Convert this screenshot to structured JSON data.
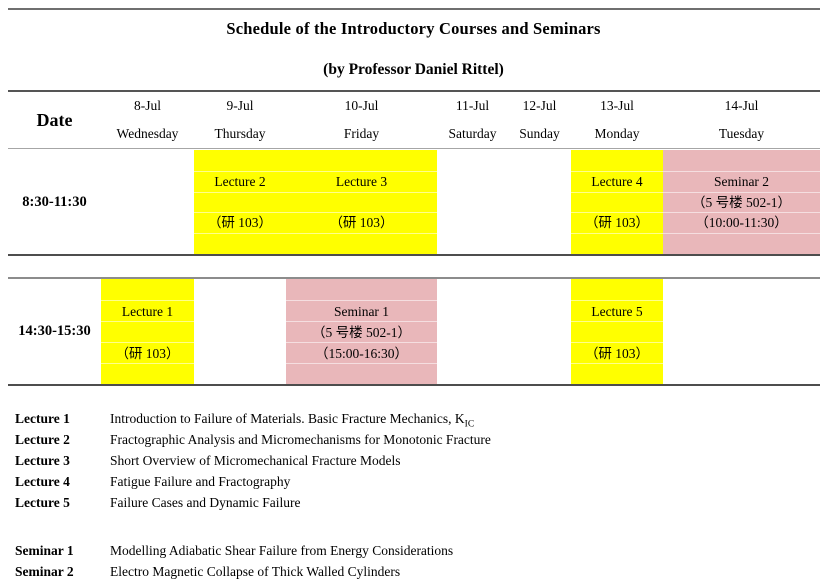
{
  "title": "Schedule of the Introductory Courses and Seminars",
  "subtitle": "(by Professor Daniel Rittel)",
  "colors": {
    "lecture_bg": "#FFFF00",
    "seminar_bg": "#E9B7BA"
  },
  "table": {
    "date_header": "Date",
    "days": [
      {
        "date": "8-Jul",
        "name": "Wednesday"
      },
      {
        "date": "9-Jul",
        "name": "Thursday"
      },
      {
        "date": "10-Jul",
        "name": "Friday"
      },
      {
        "date": "11-Jul",
        "name": "Saturday"
      },
      {
        "date": "12-Jul",
        "name": "Sunday"
      },
      {
        "date": "13-Jul",
        "name": "Monday"
      },
      {
        "date": "14-Jul",
        "name": "Tuesday"
      }
    ],
    "rows": [
      {
        "time": "8:30-11:30",
        "cells": {
          "thu": {
            "type": "lecture",
            "lines": [
              "Lecture 2",
              "（研 103）"
            ]
          },
          "fri": {
            "type": "lecture",
            "lines": [
              "Lecture 3",
              "（研 103）"
            ]
          },
          "mon": {
            "type": "lecture",
            "lines": [
              "Lecture 4",
              "（研 103）"
            ]
          },
          "tue": {
            "type": "seminar",
            "lines": [
              "Seminar 2",
              "（5 号楼 502-1）",
              "（10:00-11:30）"
            ]
          }
        }
      },
      {
        "time": "14:30-15:30",
        "cells": {
          "wed": {
            "type": "lecture",
            "lines": [
              "Lecture 1",
              "（研 103）"
            ]
          },
          "fri": {
            "type": "seminar",
            "lines": [
              "Seminar 1",
              "（5 号楼 502-1）",
              "（15:00-16:30）"
            ]
          },
          "mon": {
            "type": "lecture",
            "lines": [
              "Lecture 5",
              "（研 103）"
            ]
          }
        }
      }
    ]
  },
  "legend": {
    "lectures": [
      {
        "label": "Lecture 1",
        "desc": "Introduction to Failure of Materials. Basic Fracture Mechanics, K",
        "sub": "IC"
      },
      {
        "label": "Lecture 2",
        "desc": "Fractographic Analysis and Micromechanisms for Monotonic Fracture"
      },
      {
        "label": "Lecture 3",
        "desc": "Short Overview of Micromechanical Fracture Models"
      },
      {
        "label": "Lecture 4",
        "desc": "Fatigue Failure and Fractography"
      },
      {
        "label": "Lecture 5",
        "desc": "Failure Cases and Dynamic Failure"
      }
    ],
    "seminars": [
      {
        "label": "Seminar 1",
        "desc": "Modelling Adiabatic Shear Failure from Energy Considerations"
      },
      {
        "label": "Seminar 2",
        "desc": "Electro Magnetic Collapse of Thick Walled Cylinders"
      }
    ]
  }
}
